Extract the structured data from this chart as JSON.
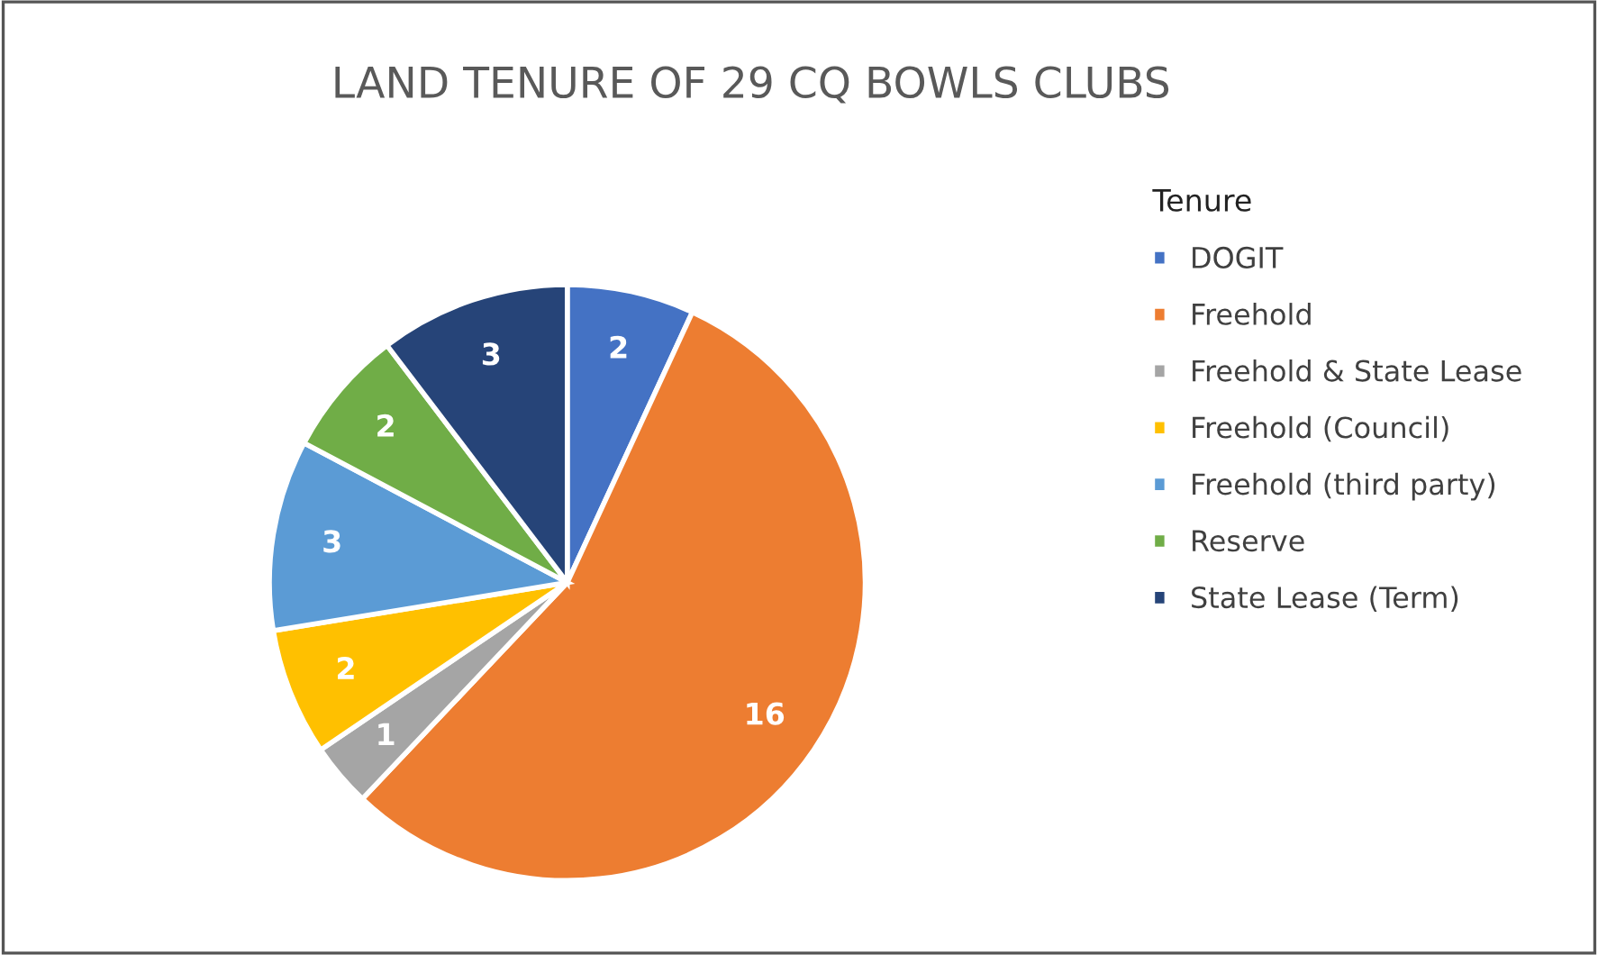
{
  "chart_data": {
    "type": "pie",
    "title": "LAND TENURE OF 29 CQ BOWLS CLUBS",
    "legend_title": "Tenure",
    "categories": [
      "DOGIT",
      "Freehold",
      "Freehold & State Lease",
      "Freehold (Council)",
      "Freehold (third party)",
      "Reserve",
      "State Lease (Term)"
    ],
    "values": [
      2,
      16,
      1,
      2,
      3,
      2,
      3
    ],
    "colors": [
      "#4472c4",
      "#ed7d31",
      "#a5a5a5",
      "#ffc000",
      "#5b9bd5",
      "#70ad47",
      "#264478"
    ],
    "data_labels": true,
    "legend": "right"
  }
}
